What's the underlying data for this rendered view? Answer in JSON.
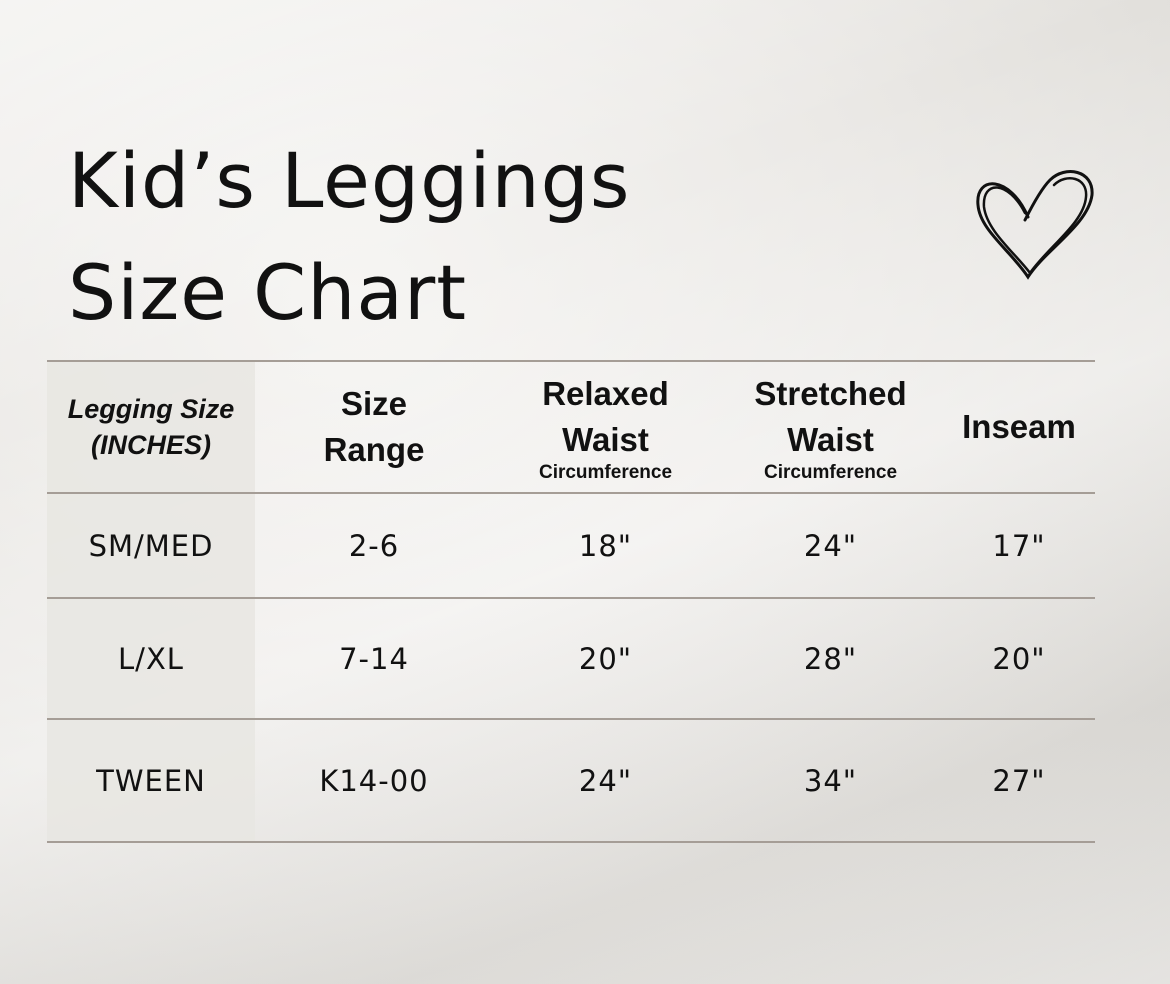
{
  "title": {
    "line1": "Kid’s Leggings",
    "line2": "Size Chart"
  },
  "decoration": {
    "icon": "heart-icon"
  },
  "table": {
    "headers": [
      {
        "line1": "Legging Size",
        "line2": "(INCHES)"
      },
      {
        "line1": "Size",
        "line2": "Range"
      },
      {
        "line1": "Relaxed",
        "line2": "Waist",
        "sub": "Circumference"
      },
      {
        "line1": "Stretched",
        "line2": "Waist",
        "sub": "Circumference"
      },
      {
        "line1": "Inseam"
      }
    ],
    "rows": [
      [
        "SM/MED",
        "2-6",
        "18\"",
        "24\"",
        "17\""
      ],
      [
        "L/XL",
        "7-14",
        "20\"",
        "28\"",
        "20\""
      ],
      [
        "TWEEN",
        "K14-00",
        "24\"",
        "34\"",
        "27\""
      ]
    ]
  }
}
